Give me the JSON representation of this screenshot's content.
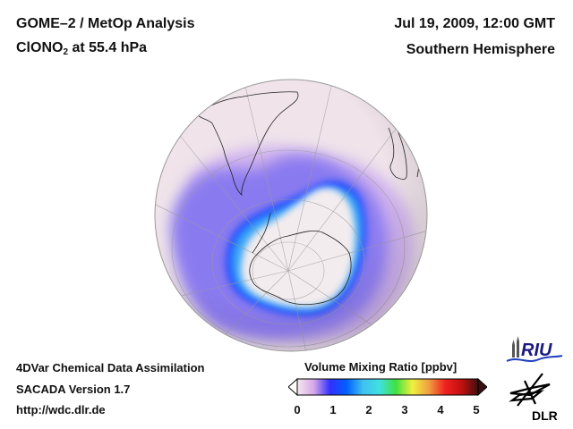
{
  "header": {
    "title": "GOME–2 / MetOp Analysis",
    "species_main": "ClONO",
    "species_sub": "2",
    "species_rest": " at 55.4 hPa",
    "date": "Jul 19, 2009, 12:00 GMT",
    "region": "Southern Hemisphere"
  },
  "footer": {
    "line1": "4DVar Chemical Data Assimilation",
    "line2": "SACADA Version 1.7",
    "line3": "http://wdc.dlr.de"
  },
  "colorbar": {
    "title": "Volume Mixing Ratio [ppbv]",
    "ticks": [
      "0",
      "1",
      "2",
      "3",
      "4",
      "5"
    ],
    "range": [
      0,
      5
    ],
    "colors": [
      "#f4e8ee",
      "#d8a8e8",
      "#3030ff",
      "#0060ff",
      "#40c0f0",
      "#40e0e0",
      "#40e040",
      "#f0f040",
      "#f0a040",
      "#f02020",
      "#c01010",
      "#401010"
    ]
  },
  "logos": {
    "riu": "RIU",
    "dlr": "DLR"
  },
  "map": {
    "projection": "orthographic",
    "center": "South Pole",
    "ocean_color": "#f0e4ea",
    "colors": {
      "low": "#f2e4ec",
      "mid": "#7a6cf0",
      "vortex_edge": "#2050ff",
      "vortex_edge_inner": "#30a0f8",
      "vortex_core": "#f4eef0"
    }
  }
}
